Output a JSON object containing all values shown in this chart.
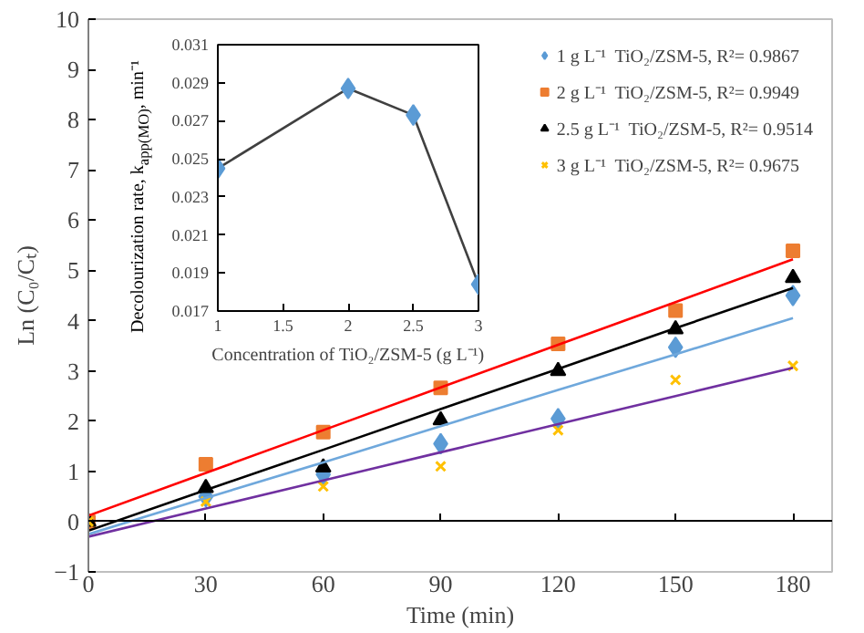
{
  "chart_data": [
    {
      "type": "scatter",
      "xlabel": "Time (min)",
      "ylabel": "Ln (C₀/Cₜ)",
      "x": [
        0,
        30,
        60,
        90,
        120,
        150,
        180
      ],
      "series": [
        {
          "name": "1 g L⁻¹  TiO₂/ZSM-5, R²= 0.9867",
          "color": "#5b9bd5",
          "marker": "diamond",
          "values": [
            null,
            0.5,
            0.94,
            1.55,
            2.05,
            3.47,
            4.5
          ]
        },
        {
          "name": "2 g L⁻¹  TiO₂/ZSM-5, R²= 0.9949",
          "color": "#ed7d31",
          "marker": "square",
          "values": [
            0,
            1.14,
            1.78,
            2.66,
            3.54,
            4.2,
            5.39
          ]
        },
        {
          "name": "2.5 g L⁻¹  TiO₂/ZSM-5, R²= 0.9514",
          "color": "#000000",
          "marker": "triangle",
          "values": [
            0,
            0.67,
            1.08,
            2.02,
            3.0,
            3.83,
            4.85
          ]
        },
        {
          "name": "3 g L⁻¹  TiO₂/ZSM-5, R²= 0.9675",
          "color": "#ffc000",
          "marker": "cross",
          "values": [
            0,
            0.4,
            0.7,
            1.1,
            1.82,
            2.82,
            3.1
          ]
        },
        {
          "type": "line",
          "color": "#6fa8dc",
          "values": [
            -0.25,
            0.47,
            1.18,
            1.9,
            2.62,
            3.33,
            4.05
          ]
        },
        {
          "type": "line",
          "color": "#ff0000",
          "values": [
            0.12,
            0.97,
            1.82,
            2.67,
            3.52,
            4.37,
            5.22
          ]
        },
        {
          "type": "line",
          "color": "#000000",
          "values": [
            -0.18,
            0.63,
            1.43,
            2.24,
            3.04,
            3.85,
            4.65
          ]
        },
        {
          "type": "line",
          "color": "#7030a0",
          "values": [
            -0.3,
            0.26,
            0.82,
            1.38,
            1.94,
            2.5,
            3.06
          ]
        }
      ],
      "xlim": [
        0,
        190
      ],
      "xticks": [
        0,
        30,
        60,
        90,
        120,
        150,
        180
      ],
      "ylim": [
        -1,
        10
      ],
      "yticks": [
        -1,
        0,
        1,
        2,
        3,
        4,
        5,
        6,
        7,
        8,
        9,
        10
      ],
      "grid": false,
      "legend": "top right",
      "ref_lines": [
        {
          "axis": "y",
          "value": 0,
          "color": "#000000"
        }
      ]
    },
    {
      "type": "line",
      "xlabel": "Concentration of TiO₂/ZSM-5 (g L⁻¹)",
      "ylabel": "Decolourization rate, k$_{app(MO)}$, min⁻¹",
      "x": [
        1,
        2,
        2.5,
        3
      ],
      "series": [
        {
          "type": "line",
          "color": "#404040",
          "values": [
            0.0245,
            0.0287,
            0.0273,
            0.0184
          ]
        },
        {
          "type": "scatter",
          "color": "#5b9bd5",
          "marker": "diamond",
          "values": [
            0.0245,
            0.0287,
            0.0273,
            0.0184
          ]
        }
      ],
      "xlim": [
        1,
        3
      ],
      "xticks": [
        1,
        1.5,
        2,
        2.5,
        3
      ],
      "ylim": [
        0.017,
        0.031
      ],
      "yticks": [
        0.017,
        0.019,
        0.021,
        0.023,
        0.025,
        0.027,
        0.029,
        0.031
      ],
      "grid": false
    }
  ]
}
